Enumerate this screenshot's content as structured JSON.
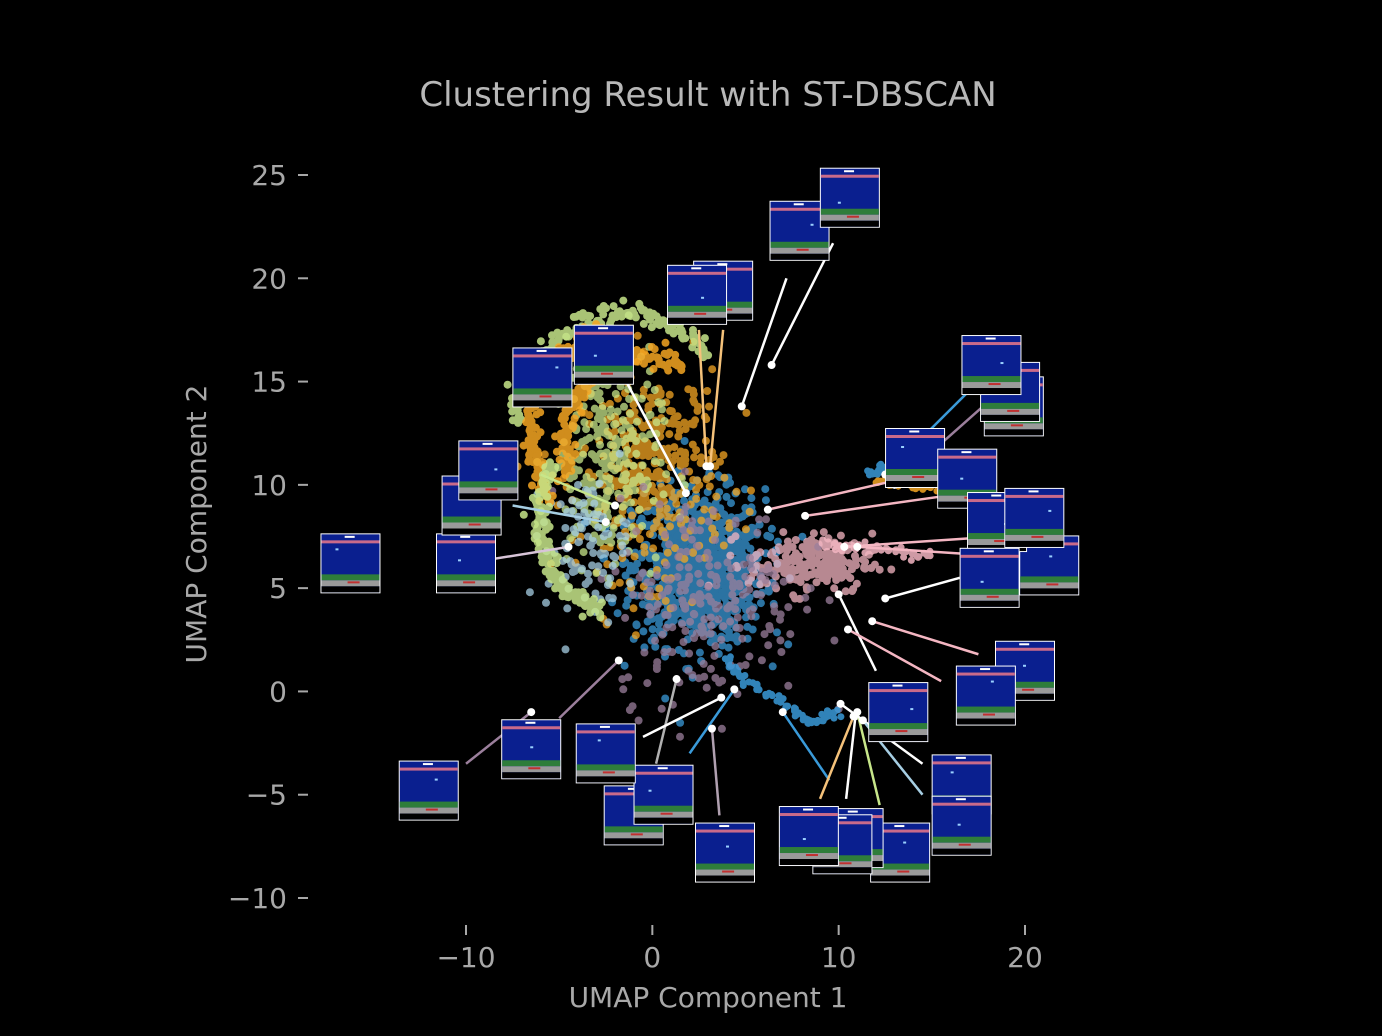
{
  "chart_data": {
    "type": "scatter",
    "title": "Clustering Result with ST-DBSCAN",
    "xlabel": "UMAP Component 1",
    "ylabel": "UMAP Component 2",
    "xlim": [
      -15.5,
      23.0
    ],
    "ylim": [
      -11.5,
      27.0
    ],
    "xticks": [
      -10,
      0,
      10,
      20
    ],
    "xtick_labels": [
      "−10",
      "0",
      "10",
      "20"
    ],
    "yticks": [
      -10,
      -5,
      0,
      5,
      10,
      15,
      20,
      25
    ],
    "ytick_labels": [
      "−10",
      "−5",
      "0",
      "5",
      "10",
      "15",
      "20",
      "25"
    ],
    "grid": false,
    "legend": "none",
    "background": "#000000",
    "text_color": "#a8a8a8",
    "series": [
      {
        "color": "#3a9ad9",
        "center": [
          2.5,
          6.0
        ],
        "spread": [
          3.2,
          3.4
        ],
        "count": 900
      },
      {
        "color": "#f5a623",
        "center": [
          0.0,
          10.5
        ],
        "spread": [
          3.5,
          4.5
        ],
        "count": 380
      },
      {
        "color": "#c7e68a",
        "center": [
          -2.5,
          11.0
        ],
        "spread": [
          2.6,
          4.5
        ],
        "count": 260
      },
      {
        "color": "#f4b6c2",
        "center": [
          8.5,
          6.2
        ],
        "spread": [
          3.0,
          1.3
        ],
        "count": 200
      },
      {
        "color": "#9b7f9c",
        "center": [
          3.0,
          4.5
        ],
        "spread": [
          4.5,
          4.5
        ],
        "count": 220
      },
      {
        "color": "#a6cee3",
        "center": [
          -3.5,
          7.0
        ],
        "spread": [
          2.0,
          3.0
        ],
        "count": 90
      }
    ],
    "arcs": [
      {
        "color": "#c7e68a",
        "cx": -1.5,
        "cy": 12.5,
        "r": 5.8,
        "from": 40,
        "to": 175
      },
      {
        "color": "#f5a623",
        "cx": -1.5,
        "cy": 12.5,
        "r": 5.0,
        "from": 100,
        "to": 220
      },
      {
        "color": "#f5a623",
        "cx": -0.5,
        "cy": 12.0,
        "r": 4.2,
        "from": 60,
        "to": 200
      },
      {
        "color": "#c7e68a",
        "cx": -1.0,
        "cy": 8.5,
        "r": 5.0,
        "from": 150,
        "to": 250
      }
    ],
    "trails": [
      {
        "color": "#3a9ad9",
        "points": [
          [
            4.0,
            1.5
          ],
          [
            5.0,
            0.5
          ],
          [
            7.0,
            -0.5
          ],
          [
            8.5,
            -1.5
          ],
          [
            10.0,
            -1.0
          ]
        ]
      },
      {
        "color": "#f4b6c2",
        "points": [
          [
            9.0,
            7.1
          ],
          [
            11.0,
            7.0
          ],
          [
            13.0,
            6.8
          ],
          [
            15.0,
            6.6
          ]
        ]
      },
      {
        "color": "#f5a623",
        "points": [
          [
            12.0,
            10.2
          ],
          [
            14.0,
            10.0
          ],
          [
            16.0,
            9.8
          ]
        ]
      },
      {
        "color": "#3a9ad9",
        "points": [
          [
            11.5,
            10.5
          ],
          [
            13.0,
            11.0
          ]
        ]
      }
    ],
    "thumbnail_annotations": [
      {
        "point": [
          4.8,
          13.8
        ],
        "label_at": [
          7.2,
          20.0
        ],
        "line_color": "#ffffff"
      },
      {
        "point": [
          6.4,
          15.8
        ],
        "label_at": [
          9.7,
          21.7
        ],
        "line_color": "#ffffff"
      },
      {
        "point": [
          2.9,
          10.9
        ],
        "label_at": [
          2.5,
          17.5
        ],
        "line_color": "#f5c27a"
      },
      {
        "point": [
          3.1,
          10.9
        ],
        "label_at": [
          3.8,
          17.5
        ],
        "line_color": "#f5c27a"
      },
      {
        "point": [
          1.8,
          9.6
        ],
        "label_at": [
          -1.4,
          15.0
        ],
        "line_color": "#ffffff"
      },
      {
        "point": [
          -2.0,
          9.0
        ],
        "label_at": [
          -6.0,
          10.5
        ],
        "line_color": "#c7e68a"
      },
      {
        "point": [
          -2.5,
          8.2
        ],
        "label_at": [
          -7.5,
          9.0
        ],
        "line_color": "#a6cee3"
      },
      {
        "point": [
          -4.5,
          7.0
        ],
        "label_at": [
          -10.0,
          6.2
        ],
        "line_color": "#d8c4d8"
      },
      {
        "point": [
          -8.8,
          6.2
        ],
        "label_at": [
          -11.0,
          6.1
        ],
        "line_color": "#ffffff"
      },
      {
        "point": [
          6.2,
          8.8
        ],
        "label_at": [
          13.0,
          10.2
        ],
        "line_color": "#f4b6c2"
      },
      {
        "point": [
          8.2,
          8.5
        ],
        "label_at": [
          16.0,
          9.5
        ],
        "line_color": "#f4b6c2"
      },
      {
        "point": [
          12.5,
          10.5
        ],
        "label_at": [
          17.5,
          15.0
        ],
        "line_color": "#3a9ad9"
      },
      {
        "point": [
          13.0,
          10.0
        ],
        "label_at": [
          18.0,
          14.0
        ],
        "line_color": "#9b7f9c"
      },
      {
        "point": [
          10.3,
          7.0
        ],
        "label_at": [
          18.5,
          7.5
        ],
        "line_color": "#f4b6c2"
      },
      {
        "point": [
          11.0,
          7.0
        ],
        "label_at": [
          19.5,
          6.5
        ],
        "line_color": "#f4b6c2"
      },
      {
        "point": [
          12.5,
          4.5
        ],
        "label_at": [
          16.5,
          5.5
        ],
        "line_color": "#ffffff"
      },
      {
        "point": [
          10.0,
          4.7
        ],
        "label_at": [
          12.0,
          1.0
        ],
        "line_color": "#ffffff"
      },
      {
        "point": [
          10.5,
          3.0
        ],
        "label_at": [
          15.5,
          0.5
        ],
        "line_color": "#f4b6c2"
      },
      {
        "point": [
          11.8,
          3.4
        ],
        "label_at": [
          17.5,
          1.8
        ],
        "line_color": "#f4b6c2"
      },
      {
        "point": [
          -1.8,
          1.5
        ],
        "label_at": [
          -5.0,
          -1.3
        ],
        "line_color": "#9b7f9c"
      },
      {
        "point": [
          -6.5,
          -1.0
        ],
        "label_at": [
          -10.0,
          -3.5
        ],
        "line_color": "#9b7f9c"
      },
      {
        "point": [
          1.3,
          0.6
        ],
        "label_at": [
          0.2,
          -3.5
        ],
        "line_color": "#b0b0b0"
      },
      {
        "point": [
          3.7,
          -0.3
        ],
        "label_at": [
          -0.5,
          -2.2
        ],
        "line_color": "#ffffff"
      },
      {
        "point": [
          4.4,
          0.1
        ],
        "label_at": [
          2.0,
          -3.0
        ],
        "line_color": "#3a9ad9"
      },
      {
        "point": [
          3.2,
          -1.8
        ],
        "label_at": [
          3.6,
          -6.0
        ],
        "line_color": "#b0a0b0"
      },
      {
        "point": [
          7.0,
          -1.0
        ],
        "label_at": [
          9.5,
          -4.3
        ],
        "line_color": "#3a9ad9"
      },
      {
        "point": [
          10.8,
          -1.2
        ],
        "label_at": [
          9.0,
          -5.2
        ],
        "line_color": "#f5c27a"
      },
      {
        "point": [
          10.9,
          -1.2
        ],
        "label_at": [
          10.4,
          -5.2
        ],
        "line_color": "#ffffff"
      },
      {
        "point": [
          11.0,
          -1.0
        ],
        "label_at": [
          12.2,
          -5.5
        ],
        "line_color": "#c7e68a"
      },
      {
        "point": [
          10.1,
          -0.6
        ],
        "label_at": [
          14.5,
          -3.5
        ],
        "line_color": "#ffffff"
      },
      {
        "point": [
          11.3,
          -1.4
        ],
        "label_at": [
          14.5,
          -5.0
        ],
        "line_color": "#a6cee3"
      }
    ],
    "thumbnails": [
      {
        "at": [
          -16.2,
          6.2
        ],
        "bar": "#c96a8a"
      },
      {
        "at": [
          -10.0,
          6.2
        ],
        "bar": "#c96a8a"
      },
      {
        "at": [
          -9.7,
          9.0
        ],
        "bar": "#c96a8a"
      },
      {
        "at": [
          -8.8,
          10.7
        ],
        "bar": "#c96a8a"
      },
      {
        "at": [
          -5.9,
          15.2
        ],
        "bar": "#c96a8a"
      },
      {
        "at": [
          -2.6,
          16.3
        ],
        "bar": "#c96a8a"
      },
      {
        "at": [
          3.8,
          19.4
        ],
        "bar": "#c96a8a"
      },
      {
        "at": [
          2.4,
          19.2
        ],
        "bar": "#c96a8a"
      },
      {
        "at": [
          7.9,
          22.3
        ],
        "bar": "#c96a8a"
      },
      {
        "at": [
          10.6,
          23.9
        ],
        "bar": "#c96a8a"
      },
      {
        "at": [
          19.4,
          13.8
        ],
        "bar": "#c96a8a"
      },
      {
        "at": [
          19.2,
          14.5
        ],
        "bar": "#c96a8a"
      },
      {
        "at": [
          18.2,
          15.8
        ],
        "bar": "#c96a8a"
      },
      {
        "at": [
          14.1,
          11.3
        ],
        "bar": "#c96a8a"
      },
      {
        "at": [
          16.9,
          10.3
        ],
        "bar": "#c96a8a"
      },
      {
        "at": [
          21.3,
          6.1
        ],
        "bar": "#c96a8a"
      },
      {
        "at": [
          18.5,
          8.2
        ],
        "bar": "#c96a8a"
      },
      {
        "at": [
          20.5,
          8.4
        ],
        "bar": "#c96a8a"
      },
      {
        "at": [
          18.1,
          5.5
        ],
        "bar": "#c96a8a"
      },
      {
        "at": [
          20.0,
          1.0
        ],
        "bar": "#c96a8a"
      },
      {
        "at": [
          17.9,
          -0.2
        ],
        "bar": "#c96a8a"
      },
      {
        "at": [
          13.2,
          -1.0
        ],
        "bar": "#c96a8a"
      },
      {
        "at": [
          16.6,
          -4.5
        ],
        "bar": "#c96a8a"
      },
      {
        "at": [
          16.6,
          -6.5
        ],
        "bar": "#c96a8a"
      },
      {
        "at": [
          13.3,
          -7.8
        ],
        "bar": "#c96a8a"
      },
      {
        "at": [
          10.8,
          -7.1
        ],
        "bar": "#c96a8a"
      },
      {
        "at": [
          10.2,
          -7.4
        ],
        "bar": "#c96a8a"
      },
      {
        "at": [
          8.4,
          -7.0
        ],
        "bar": "#c96a8a"
      },
      {
        "at": [
          3.9,
          -7.8
        ],
        "bar": "#c96a8a"
      },
      {
        "at": [
          -1.0,
          -6.0
        ],
        "bar": "#c96a8a"
      },
      {
        "at": [
          0.6,
          -5.0
        ],
        "bar": "#c96a8a"
      },
      {
        "at": [
          -2.5,
          -3.0
        ],
        "bar": "#c96a8a"
      },
      {
        "at": [
          -6.5,
          -2.8
        ],
        "bar": "#c96a8a"
      },
      {
        "at": [
          -12.0,
          -4.8
        ],
        "bar": "#c96a8a"
      }
    ]
  }
}
